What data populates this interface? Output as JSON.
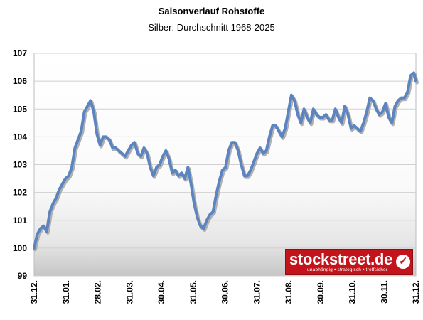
{
  "chart_data": {
    "type": "line",
    "title": "Saisonverlauf Rohstoffe",
    "subtitle": "Silber: Durchschnitt 1968-2025",
    "xlabel": "",
    "ylabel": "",
    "ylim": [
      99,
      107
    ],
    "yticks": [
      99,
      100,
      101,
      102,
      103,
      104,
      105,
      106,
      107
    ],
    "x_tick_labels": [
      "31.12.",
      "31.01.",
      "28.02.",
      "31.03.",
      "30.04.",
      "31.05.",
      "30.06.",
      "31.07.",
      "31.08.",
      "30.09.",
      "31.10.",
      "30.11.",
      "31.12."
    ],
    "grid": true,
    "legend": "none",
    "colors": {
      "line": "#5b84c0",
      "line_shadow": "#b0b0b0",
      "grid": "#d0d0d0",
      "plot_bg_top": "#ffffff",
      "plot_bg_bottom": "#c8c8c8"
    },
    "series": [
      {
        "x": [
          0,
          3,
          6,
          9,
          12,
          15,
          18,
          21,
          24,
          27,
          30,
          33,
          36,
          39,
          42,
          45,
          48,
          51,
          54,
          57,
          60,
          63,
          66,
          69,
          72,
          75,
          78,
          81,
          84,
          87,
          90,
          93,
          96,
          99,
          102,
          105,
          108,
          111,
          114,
          117,
          120,
          123,
          126,
          129,
          132,
          135,
          138,
          141,
          144,
          147,
          150,
          153,
          156,
          159,
          162,
          165,
          168,
          171,
          174,
          177,
          180,
          183,
          186,
          189,
          192,
          195,
          198,
          201,
          204,
          207,
          210,
          213,
          216,
          219,
          222,
          225,
          228,
          231,
          234,
          237,
          240,
          243,
          246,
          249,
          252,
          255,
          258,
          261,
          264,
          267,
          270,
          273,
          276,
          279,
          282,
          285,
          288,
          291,
          294,
          297,
          300,
          303,
          306,
          309,
          312,
          315,
          318,
          321,
          324,
          327,
          330,
          333,
          336,
          339,
          342,
          345,
          348,
          351,
          354,
          357,
          360,
          363,
          365
        ],
        "values": [
          100.0,
          100.5,
          100.7,
          100.8,
          100.6,
          101.3,
          101.6,
          101.8,
          102.1,
          102.3,
          102.5,
          102.6,
          102.9,
          103.6,
          103.9,
          104.2,
          104.9,
          105.1,
          105.3,
          104.9,
          104.1,
          103.7,
          104.0,
          104.0,
          103.9,
          103.6,
          103.6,
          103.5,
          103.4,
          103.3,
          103.5,
          103.7,
          103.8,
          103.4,
          103.3,
          103.6,
          103.4,
          102.9,
          102.6,
          102.9,
          103.0,
          103.3,
          103.5,
          103.2,
          102.7,
          102.8,
          102.6,
          102.7,
          102.5,
          102.9,
          102.3,
          101.6,
          101.1,
          100.8,
          100.7,
          101.0,
          101.2,
          101.3,
          101.9,
          102.4,
          102.8,
          102.9,
          103.5,
          103.8,
          103.8,
          103.5,
          103.0,
          102.6,
          102.6,
          102.8,
          103.1,
          103.4,
          103.6,
          103.4,
          103.5,
          104.0,
          104.4,
          104.4,
          104.2,
          104.0,
          104.3,
          104.9,
          105.5,
          105.3,
          104.8,
          104.5,
          105.0,
          104.7,
          104.5,
          105.0,
          104.8,
          104.7,
          104.7,
          104.8,
          104.6,
          104.6,
          105.0,
          104.7,
          104.5,
          105.1,
          104.8,
          104.3,
          104.4,
          104.3,
          104.2,
          104.5,
          104.9,
          105.4,
          105.3,
          105.0,
          104.8,
          104.9,
          105.2,
          104.7,
          104.5,
          105.1,
          105.3,
          105.4,
          105.4,
          105.6,
          106.2,
          106.3,
          106.0
        ]
      }
    ]
  },
  "logo": {
    "text": "stockstreet.de",
    "tagline": "unabhängig • strategisch • treffsicher"
  }
}
